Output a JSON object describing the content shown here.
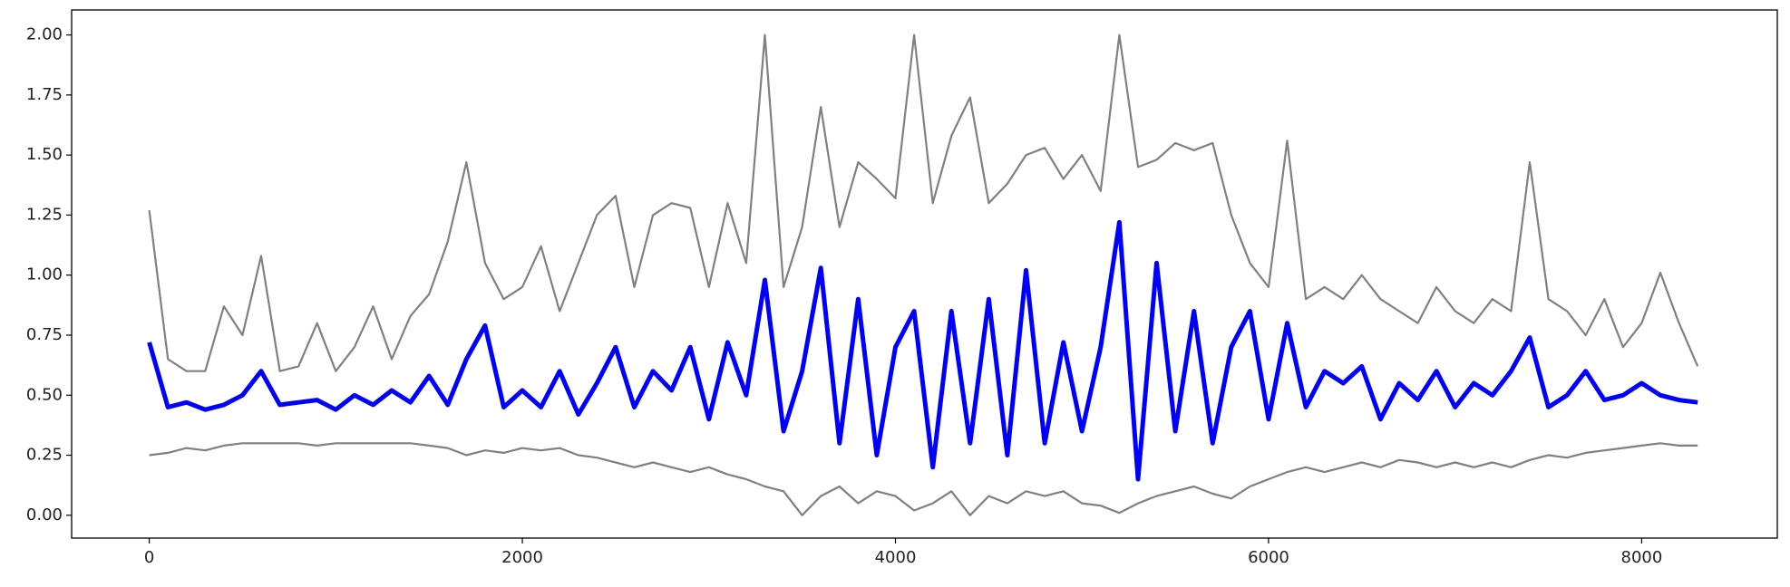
{
  "chart_data": {
    "type": "line",
    "x": [
      0,
      100,
      200,
      300,
      400,
      500,
      600,
      700,
      800,
      900,
      1000,
      1100,
      1200,
      1300,
      1400,
      1500,
      1600,
      1700,
      1800,
      1900,
      2000,
      2100,
      2200,
      2300,
      2400,
      2500,
      2600,
      2700,
      2800,
      2900,
      3000,
      3100,
      3200,
      3300,
      3400,
      3500,
      3600,
      3700,
      3800,
      3900,
      4000,
      4100,
      4200,
      4300,
      4400,
      4500,
      4600,
      4700,
      4800,
      4900,
      5000,
      5100,
      5200,
      5300,
      5400,
      5500,
      5600,
      5700,
      5800,
      5900,
      6000,
      6100,
      6200,
      6300,
      6400,
      6500,
      6600,
      6700,
      6800,
      6900,
      7000,
      7100,
      7200,
      7300,
      7400,
      7500,
      7600,
      7700,
      7800,
      7900,
      8000,
      8100,
      8200,
      8300
    ],
    "series": [
      {
        "color": "#808080",
        "values": [
          1.27,
          0.65,
          0.6,
          0.6,
          0.87,
          0.75,
          1.08,
          0.6,
          0.62,
          0.8,
          0.6,
          0.7,
          0.87,
          0.65,
          0.83,
          0.92,
          1.14,
          1.47,
          1.05,
          0.9,
          0.95,
          1.12,
          0.85,
          1.05,
          1.25,
          1.33,
          0.95,
          1.25,
          1.3,
          1.28,
          0.95,
          1.3,
          1.05,
          2.0,
          0.95,
          1.2,
          1.7,
          1.2,
          1.47,
          1.4,
          1.32,
          2.0,
          1.3,
          1.58,
          1.74,
          1.3,
          1.38,
          1.5,
          1.53,
          1.4,
          1.5,
          1.35,
          2.0,
          1.45,
          1.48,
          1.55,
          1.52,
          1.55,
          1.25,
          1.05,
          0.95,
          1.56,
          0.9,
          0.95,
          0.9,
          1.0,
          0.9,
          0.85,
          0.8,
          0.95,
          0.85,
          0.8,
          0.9,
          0.85,
          1.47,
          0.9,
          0.85,
          0.75,
          0.9,
          0.7,
          0.8,
          1.01,
          0.8,
          0.62
        ]
      },
      {
        "color": "#808080",
        "values": [
          0.25,
          0.26,
          0.28,
          0.27,
          0.29,
          0.3,
          0.3,
          0.3,
          0.3,
          0.29,
          0.3,
          0.3,
          0.3,
          0.3,
          0.3,
          0.29,
          0.28,
          0.25,
          0.27,
          0.26,
          0.28,
          0.27,
          0.28,
          0.25,
          0.24,
          0.22,
          0.2,
          0.22,
          0.2,
          0.18,
          0.2,
          0.17,
          0.15,
          0.12,
          0.1,
          0.0,
          0.08,
          0.12,
          0.05,
          0.1,
          0.08,
          0.02,
          0.05,
          0.1,
          0.0,
          0.08,
          0.05,
          0.1,
          0.08,
          0.1,
          0.05,
          0.04,
          0.01,
          0.05,
          0.08,
          0.1,
          0.12,
          0.09,
          0.07,
          0.12,
          0.15,
          0.18,
          0.2,
          0.18,
          0.2,
          0.22,
          0.2,
          0.23,
          0.22,
          0.2,
          0.22,
          0.2,
          0.22,
          0.2,
          0.23,
          0.25,
          0.24,
          0.26,
          0.27,
          0.28,
          0.29,
          0.3,
          0.29,
          0.29
        ]
      },
      {
        "color": "#0000ff",
        "values": [
          0.72,
          0.45,
          0.47,
          0.44,
          0.46,
          0.5,
          0.6,
          0.46,
          0.47,
          0.48,
          0.44,
          0.5,
          0.46,
          0.52,
          0.47,
          0.58,
          0.46,
          0.65,
          0.79,
          0.45,
          0.52,
          0.45,
          0.6,
          0.42,
          0.55,
          0.7,
          0.45,
          0.6,
          0.52,
          0.7,
          0.4,
          0.72,
          0.5,
          0.98,
          0.35,
          0.6,
          1.03,
          0.3,
          0.9,
          0.25,
          0.7,
          0.85,
          0.2,
          0.85,
          0.3,
          0.9,
          0.25,
          1.02,
          0.3,
          0.72,
          0.35,
          0.7,
          1.22,
          0.15,
          1.05,
          0.35,
          0.85,
          0.3,
          0.7,
          0.85,
          0.4,
          0.8,
          0.45,
          0.6,
          0.55,
          0.62,
          0.4,
          0.55,
          0.48,
          0.6,
          0.45,
          0.55,
          0.5,
          0.6,
          0.74,
          0.45,
          0.5,
          0.6,
          0.48,
          0.5,
          0.55,
          0.5,
          0.48,
          0.47
        ]
      }
    ],
    "xlim": [
      -416,
      8727
    ],
    "ylim": [
      -0.095,
      2.104
    ],
    "xticks": [
      0,
      2000,
      4000,
      6000,
      8000
    ],
    "yticks": [
      {
        "value": 0,
        "label": "0.00"
      },
      {
        "value": 0.25,
        "label": "0.25"
      },
      {
        "value": 0.5,
        "label": "0.50"
      },
      {
        "value": 0.75,
        "label": "0.75"
      },
      {
        "value": 1,
        "label": "1.00"
      },
      {
        "value": 1.25,
        "label": "1.25"
      },
      {
        "value": 1.5,
        "label": "1.50"
      },
      {
        "value": 1.75,
        "label": "1.75"
      },
      {
        "value": 2,
        "label": "2.00"
      }
    ]
  }
}
